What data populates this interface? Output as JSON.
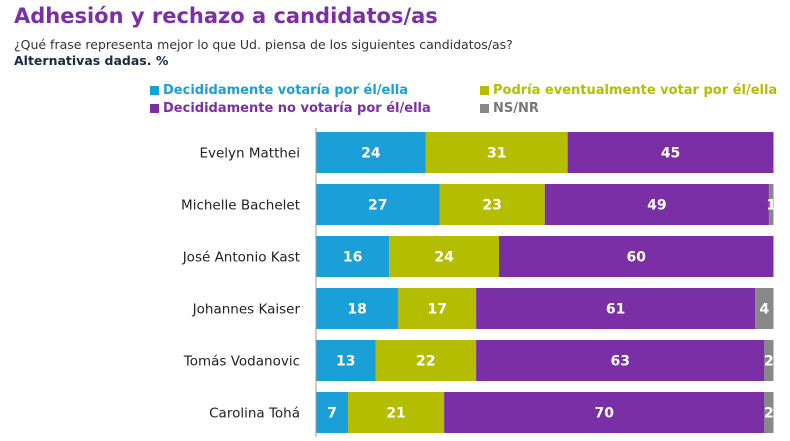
{
  "chart_data": {
    "type": "bar",
    "orientation": "horizontal-stacked",
    "title": "Adhesión y rechazo a candidatos/as",
    "subtitle": "¿Qué frase representa mejor lo que Ud. piensa de los siguientes candidatos/as?",
    "note": "Alternativas dadas. %",
    "legend_position": "top",
    "categories": [
      "Evelyn Matthei",
      "Michelle Bachelet",
      "José Antonio Kast",
      "Johannes Kaiser",
      "Tomás Vodanovic",
      "Carolina Tohá"
    ],
    "series": [
      {
        "name": "Decididamente votaría por él/ella",
        "color": "#1a9fd8",
        "values": [
          24,
          27,
          16,
          18,
          13,
          7
        ]
      },
      {
        "name": "Podría eventualmente votar por él/ella",
        "color": "#b5bd00",
        "values": [
          31,
          23,
          24,
          17,
          22,
          21
        ]
      },
      {
        "name": "Decididamente no votaría por él/ella",
        "color": "#7b2fa6",
        "values": [
          45,
          49,
          60,
          61,
          63,
          70
        ]
      },
      {
        "name": "NS/NR",
        "color": "#888888",
        "values": [
          0,
          1,
          0,
          4,
          2,
          2
        ]
      }
    ],
    "xlim": [
      0,
      100
    ],
    "grid": false
  }
}
